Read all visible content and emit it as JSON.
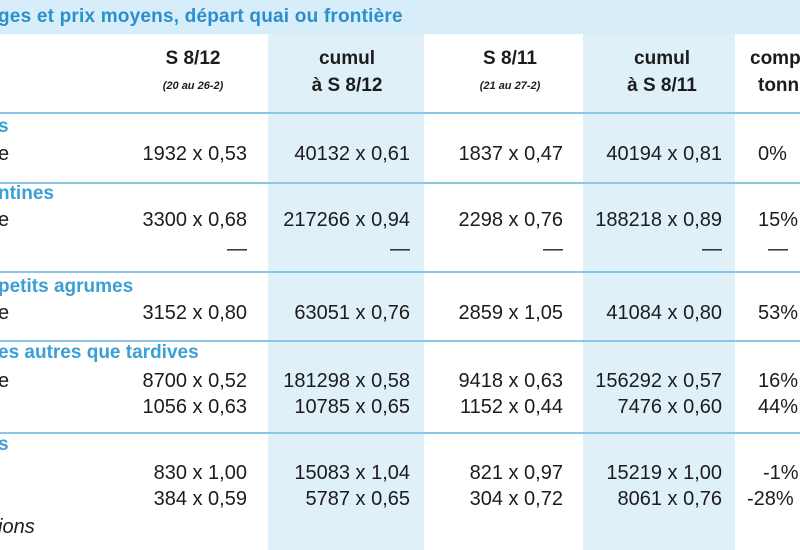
{
  "title": "ges et prix moyens, départ quai ou frontière",
  "columns": [
    {
      "line1": "S 8/12",
      "line2": "(20 au 26-2)"
    },
    {
      "line1": "cumul",
      "line2": "à S 8/12"
    },
    {
      "line1": "S 8/11",
      "line2": "(21 au 27-2)"
    },
    {
      "line1": "cumul",
      "line2": "à S 8/11"
    },
    {
      "line1": "comp",
      "line2": "tonn"
    }
  ],
  "sections": [
    {
      "heading": "s",
      "rows": [
        {
          "label": "e",
          "values": [
            "1932 x 0,53",
            "40132 x 0,61",
            "1837 x 0,47",
            "40194 x 0,81",
            "0%"
          ]
        }
      ]
    },
    {
      "heading": "ntines",
      "rows": [
        {
          "label": "e",
          "values": [
            "3300 x 0,68",
            "217266 x 0,94",
            "2298 x 0,76",
            "188218 x 0,89",
            "15%"
          ]
        },
        {
          "label": "",
          "values": [
            "—",
            "—",
            "—",
            "—",
            "—"
          ]
        }
      ]
    },
    {
      "heading": "petits agrumes",
      "rows": [
        {
          "label": "e",
          "values": [
            "3152 x 0,80",
            "63051 x 0,76",
            "2859 x 1,05",
            "41084 x 0,80",
            "53%"
          ]
        }
      ]
    },
    {
      "heading": "es autres que tardives",
      "rows": [
        {
          "label": "e",
          "values": [
            "8700 x 0,52",
            "181298 x 0,58",
            "9418 x 0,63",
            "156292 x 0,57",
            "16%"
          ]
        },
        {
          "label": "",
          "values": [
            "1056 x 0,63",
            "10785 x 0,65",
            "1152 x 0,44",
            "7476 x 0,60",
            "44%"
          ]
        }
      ]
    },
    {
      "heading": "s",
      "rows": [
        {
          "label": "",
          "values": [
            "830 x 1,00",
            "15083 x 1,04",
            "821 x 0,97",
            "15219 x 1,00",
            "-1%"
          ]
        },
        {
          "label": "",
          "values": [
            "384 x 0,59",
            "5787 x 0,65",
            "304 x 0,72",
            "8061 x 0,76",
            "-28%"
          ]
        }
      ]
    }
  ],
  "footnote": "ions"
}
